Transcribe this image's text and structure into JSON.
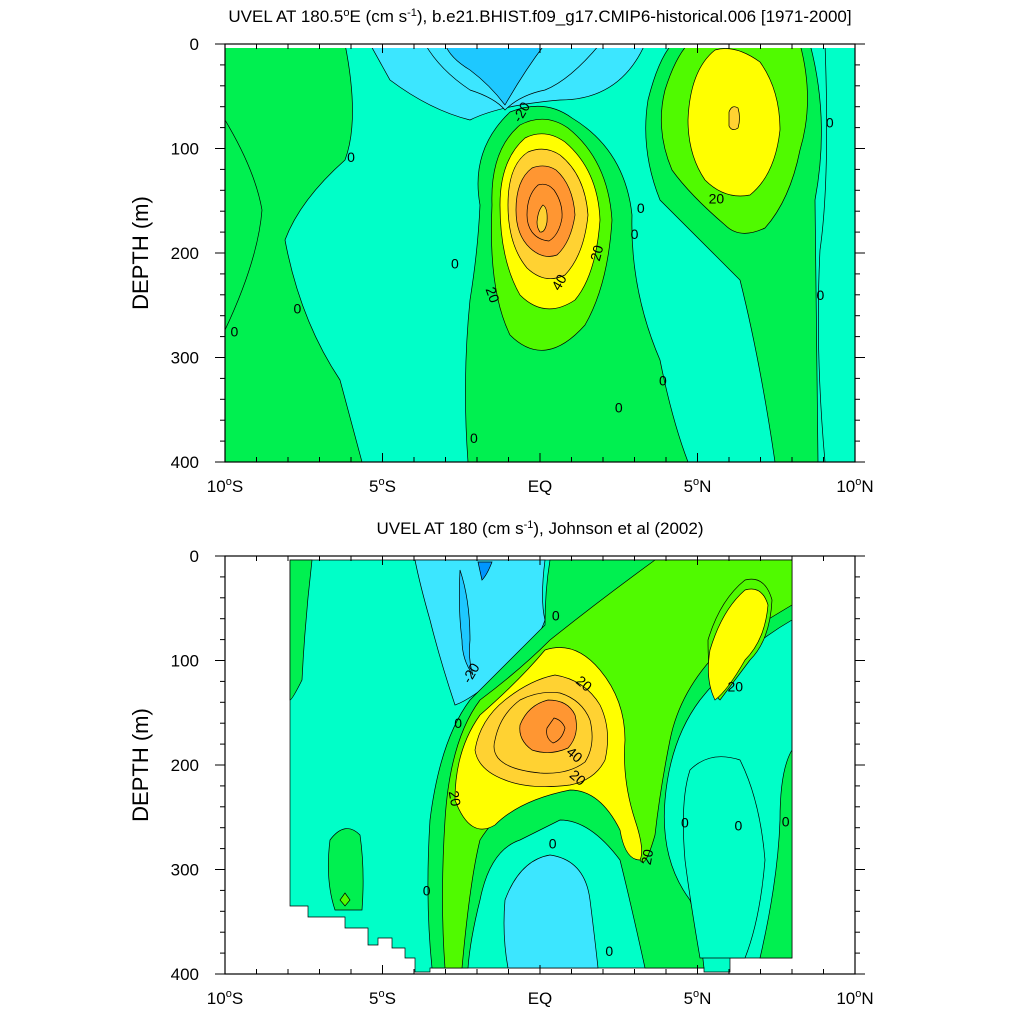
{
  "colors": {
    "lt_neg30": "#0096ff",
    "neg30_neg20": "#1ec8ff",
    "neg20_neg10": "#3ce6ff",
    "neg10_0": "#00ffc8",
    "0_10": "#00f050",
    "10_20": "#50fa00",
    "20_30": "#ffff00",
    "30_40": "#ffd232",
    "40_50": "#ff9632",
    "line": "#000000"
  },
  "chart_data": [
    {
      "type": "contour",
      "title_main": "UVEL AT 180.5",
      "title_sup_deg": "o",
      "title_mid": "E (cm s",
      "title_sup_unit": "-1",
      "title_tail": "), b.e21.BHIST.f09_g17.CMIP6-historical.006 [1971-2000]",
      "xlabel": "",
      "ylabel": "DEPTH (m)",
      "xlim": [
        -10,
        10
      ],
      "ylim": [
        400,
        0
      ],
      "xticks": [
        {
          "v": -10,
          "label": "10",
          "deg": "o",
          "suffix": "S"
        },
        {
          "v": -5,
          "label": "5",
          "deg": "o",
          "suffix": "S"
        },
        {
          "v": 0,
          "label": "EQ",
          "deg": "",
          "suffix": ""
        },
        {
          "v": 5,
          "label": "5",
          "deg": "o",
          "suffix": "N"
        },
        {
          "v": 10,
          "label": "10",
          "deg": "o",
          "suffix": "N"
        }
      ],
      "yticks": [
        "0",
        "100",
        "200",
        "300",
        "400"
      ],
      "contour_interval": 10,
      "contour_labels": [
        {
          "x": -0.6,
          "y": 65,
          "text": "-20",
          "rot": -60
        },
        {
          "x": -6.0,
          "y": 108,
          "text": "0",
          "rot": 0
        },
        {
          "x": 5.6,
          "y": 148,
          "text": "20",
          "rot": 0
        },
        {
          "x": 9.2,
          "y": 75,
          "text": "0",
          "rot": 0
        },
        {
          "x": 3.2,
          "y": 157,
          "text": "0",
          "rot": 0
        },
        {
          "x": 3.0,
          "y": 182,
          "text": "0",
          "rot": 0
        },
        {
          "x": 1.8,
          "y": 200,
          "text": "20",
          "rot": -75
        },
        {
          "x": 0.6,
          "y": 228,
          "text": "40",
          "rot": -60
        },
        {
          "x": -1.5,
          "y": 240,
          "text": "20",
          "rot": 70
        },
        {
          "x": -2.7,
          "y": 210,
          "text": "0",
          "rot": 0
        },
        {
          "x": -7.7,
          "y": 253,
          "text": "0",
          "rot": 0
        },
        {
          "x": -9.7,
          "y": 275,
          "text": "0",
          "rot": 0
        },
        {
          "x": 8.9,
          "y": 240,
          "text": "0",
          "rot": 0
        },
        {
          "x": 3.9,
          "y": 322,
          "text": "0",
          "rot": 0
        },
        {
          "x": 2.5,
          "y": 348,
          "text": "0",
          "rot": 0
        },
        {
          "x": -2.1,
          "y": 377,
          "text": "0",
          "rot": 0
        }
      ]
    },
    {
      "type": "contour",
      "title_main": "UVEL AT 180 (cm s",
      "title_sup_unit": "-1",
      "title_tail": "), Johnson et al (2002)",
      "xlabel": "",
      "ylabel": "DEPTH (m)",
      "xlim": [
        -10,
        10
      ],
      "ylim": [
        400,
        0
      ],
      "xticks": [
        {
          "v": -10,
          "label": "10",
          "deg": "o",
          "suffix": "S"
        },
        {
          "v": -5,
          "label": "5",
          "deg": "o",
          "suffix": "S"
        },
        {
          "v": 0,
          "label": "EQ",
          "deg": "",
          "suffix": ""
        },
        {
          "v": 5,
          "label": "5",
          "deg": "o",
          "suffix": "N"
        },
        {
          "v": 10,
          "label": "10",
          "deg": "o",
          "suffix": "N"
        }
      ],
      "yticks": [
        "0",
        "100",
        "200",
        "300",
        "400"
      ],
      "contour_interval": 10,
      "contour_labels": [
        {
          "x": 0.5,
          "y": 57,
          "text": "0",
          "rot": 0
        },
        {
          "x": -2.2,
          "y": 112,
          "text": "-20",
          "rot": -60
        },
        {
          "x": 1.4,
          "y": 122,
          "text": "20",
          "rot": 40
        },
        {
          "x": 6.2,
          "y": 125,
          "text": "20",
          "rot": 0
        },
        {
          "x": -2.6,
          "y": 160,
          "text": "0",
          "rot": 0
        },
        {
          "x": 1.1,
          "y": 190,
          "text": "40",
          "rot": 40
        },
        {
          "x": 1.2,
          "y": 212,
          "text": "20",
          "rot": 40
        },
        {
          "x": -2.7,
          "y": 232,
          "text": "20",
          "rot": 80
        },
        {
          "x": 4.6,
          "y": 255,
          "text": "0",
          "rot": 0
        },
        {
          "x": 6.3,
          "y": 258,
          "text": "0",
          "rot": 0
        },
        {
          "x": 7.8,
          "y": 254,
          "text": "0",
          "rot": 0
        },
        {
          "x": 3.4,
          "y": 288,
          "text": "20",
          "rot": -80
        },
        {
          "x": 0.4,
          "y": 275,
          "text": "0",
          "rot": 0
        },
        {
          "x": -3.6,
          "y": 320,
          "text": "0",
          "rot": 0
        },
        {
          "x": 2.2,
          "y": 378,
          "text": "0",
          "rot": 0
        }
      ]
    }
  ]
}
